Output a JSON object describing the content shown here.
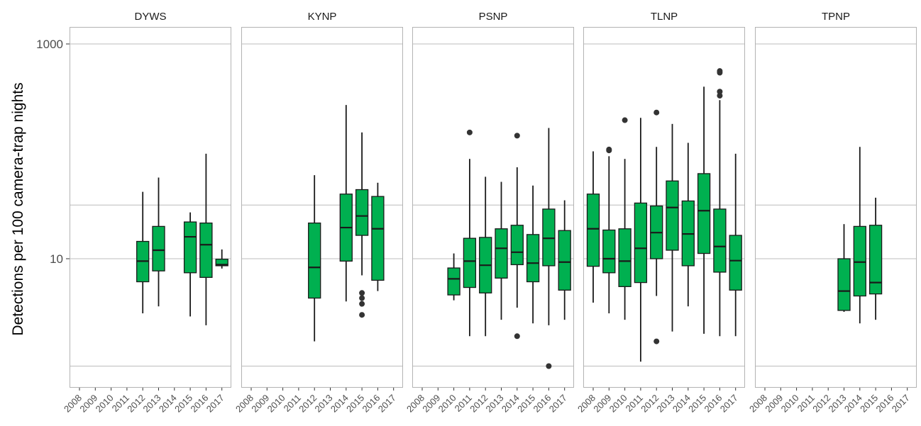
{
  "chart_data": {
    "type": "box",
    "ylabel": "Detections per 100 camera-trap nights",
    "xlabel": "",
    "y_scale": "log10",
    "ylim": [
      0.9,
      1400
    ],
    "y_ticks": [
      1000,
      10
    ],
    "y_tick_labels": [
      "1000",
      "10"
    ],
    "grid_y": [
      1,
      31.6,
      1000
    ],
    "grid_y_minor": [
      10
    ],
    "categories": [
      "2008",
      "2009",
      "2010",
      "2011",
      "2012",
      "2013",
      "2014",
      "2015",
      "2016",
      "2017"
    ],
    "colors": {
      "box_fill": "#00b050",
      "box_line": "#1a1a1a",
      "panel_border": "#b3b3b3",
      "grid": "#bcbcbc"
    },
    "panels": [
      {
        "name": "DYWS",
        "boxes": [
          {
            "x": "2012",
            "min": 3.1,
            "q1": 6.1,
            "median": 9.5,
            "q3": 14.5,
            "max": 42,
            "outliers": []
          },
          {
            "x": "2013",
            "min": 3.6,
            "q1": 7.7,
            "median": 12.0,
            "q3": 20.0,
            "max": 57,
            "outliers": []
          },
          {
            "x": "2015",
            "min": 2.9,
            "q1": 7.4,
            "median": 16.0,
            "q3": 22.0,
            "max": 27,
            "outliers": []
          },
          {
            "x": "2016",
            "min": 2.4,
            "q1": 6.7,
            "median": 13.5,
            "q3": 21.5,
            "max": 95,
            "outliers": []
          },
          {
            "x": "2017",
            "min": 8.1,
            "q1": 8.6,
            "median": 8.8,
            "q3": 9.9,
            "max": 12.2,
            "outliers": []
          }
        ]
      },
      {
        "name": "KYNP",
        "boxes": [
          {
            "x": "2012",
            "min": 1.7,
            "q1": 4.3,
            "median": 8.3,
            "q3": 21.5,
            "max": 60,
            "outliers": []
          },
          {
            "x": "2014",
            "min": 4.0,
            "q1": 9.5,
            "median": 19.5,
            "q3": 40.0,
            "max": 270,
            "outliers": []
          },
          {
            "x": "2015",
            "min": 7.0,
            "q1": 16.5,
            "median": 25.0,
            "q3": 44.0,
            "max": 150,
            "outliers": [
              3.0,
              3.8,
              4.3,
              4.8
            ]
          },
          {
            "x": "2016",
            "min": 5.0,
            "q1": 6.3,
            "median": 19.0,
            "q3": 38.0,
            "max": 51,
            "outliers": []
          }
        ]
      },
      {
        "name": "PSNP",
        "boxes": [
          {
            "x": "2010",
            "min": 4.1,
            "q1": 4.6,
            "median": 6.5,
            "q3": 8.2,
            "max": 11.2,
            "outliers": []
          },
          {
            "x": "2011",
            "min": 1.9,
            "q1": 5.4,
            "median": 9.5,
            "q3": 15.5,
            "max": 85,
            "outliers": [
              150
            ]
          },
          {
            "x": "2012",
            "min": 1.9,
            "q1": 4.8,
            "median": 8.7,
            "q3": 15.8,
            "max": 58,
            "outliers": []
          },
          {
            "x": "2013",
            "min": 2.7,
            "q1": 6.6,
            "median": 12.5,
            "q3": 19.0,
            "max": 52,
            "outliers": []
          },
          {
            "x": "2014",
            "min": 3.5,
            "q1": 8.8,
            "median": 11.5,
            "q3": 20.5,
            "max": 71,
            "outliers": [
              1.9,
              140
            ]
          },
          {
            "x": "2015",
            "min": 2.5,
            "q1": 6.1,
            "median": 9.1,
            "q3": 16.8,
            "max": 48,
            "outliers": []
          },
          {
            "x": "2016",
            "min": 2.4,
            "q1": 8.6,
            "median": 15.5,
            "q3": 29.0,
            "max": 165,
            "outliers": [
              1.0
            ]
          },
          {
            "x": "2017",
            "min": 2.7,
            "q1": 5.1,
            "median": 9.3,
            "q3": 18.3,
            "max": 35,
            "outliers": []
          }
        ]
      },
      {
        "name": "TLNP",
        "boxes": [
          {
            "x": "2008",
            "min": 3.9,
            "q1": 8.5,
            "median": 19.0,
            "q3": 40.0,
            "max": 100,
            "outliers": []
          },
          {
            "x": "2009",
            "min": 3.1,
            "q1": 7.4,
            "median": 10.0,
            "q3": 18.5,
            "max": 90,
            "outliers": [
              102,
              104
            ]
          },
          {
            "x": "2010",
            "min": 2.7,
            "q1": 5.5,
            "median": 9.5,
            "q3": 19.0,
            "max": 85,
            "outliers": [
              195
            ]
          },
          {
            "x": "2011",
            "min": 1.1,
            "q1": 6.0,
            "median": 12.5,
            "q3": 33.0,
            "max": 205,
            "outliers": []
          },
          {
            "x": "2012",
            "min": 4.5,
            "q1": 10.0,
            "median": 17.5,
            "q3": 31.0,
            "max": 110,
            "outliers": [
              1.7,
              230
            ]
          },
          {
            "x": "2013",
            "min": 2.1,
            "q1": 12.0,
            "median": 30.0,
            "q3": 53.0,
            "max": 180,
            "outliers": []
          },
          {
            "x": "2014",
            "min": 3.6,
            "q1": 8.6,
            "median": 17.0,
            "q3": 34.5,
            "max": 120,
            "outliers": []
          },
          {
            "x": "2015",
            "min": 2.0,
            "q1": 11.2,
            "median": 28.0,
            "q3": 62.0,
            "max": 400,
            "outliers": []
          },
          {
            "x": "2016",
            "min": 1.9,
            "q1": 7.5,
            "median": 13.0,
            "q3": 29.0,
            "max": 300,
            "outliers": [
              330,
              360,
              540,
              560
            ]
          },
          {
            "x": "2017",
            "min": 1.9,
            "q1": 5.1,
            "median": 9.6,
            "q3": 16.5,
            "max": 95,
            "outliers": []
          }
        ]
      },
      {
        "name": "TPNP",
        "boxes": [
          {
            "x": "2013",
            "min": 3.2,
            "q1": 3.3,
            "median": 5.0,
            "q3": 10.0,
            "max": 21,
            "outliers": []
          },
          {
            "x": "2014",
            "min": 2.5,
            "q1": 4.5,
            "median": 9.3,
            "q3": 20.0,
            "max": 110,
            "outliers": []
          },
          {
            "x": "2015",
            "min": 2.7,
            "q1": 4.7,
            "median": 6.0,
            "q3": 20.5,
            "max": 37,
            "outliers": []
          }
        ]
      }
    ]
  }
}
